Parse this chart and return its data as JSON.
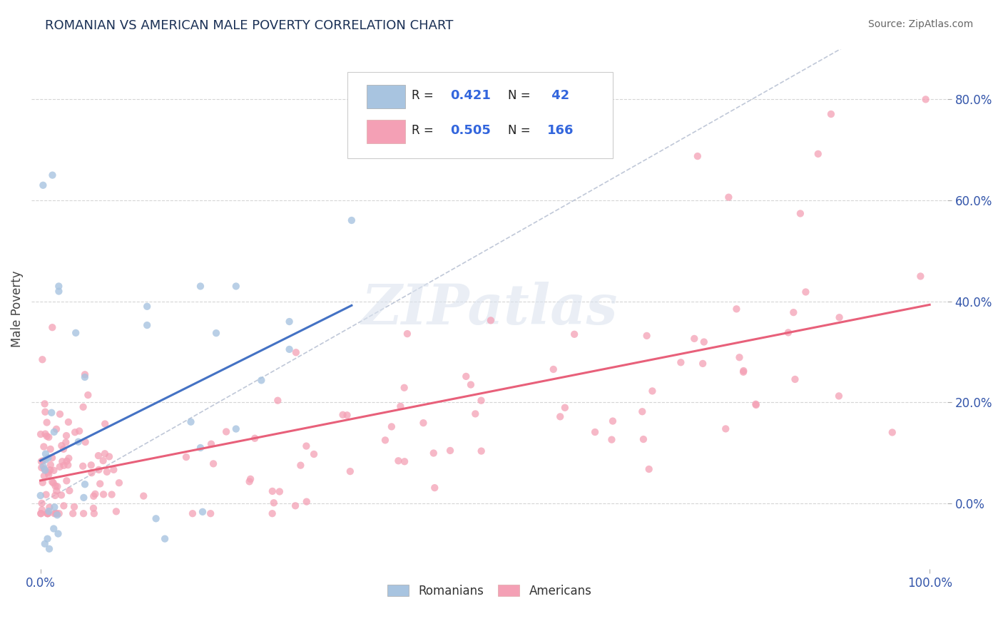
{
  "title": "ROMANIAN VS AMERICAN MALE POVERTY CORRELATION CHART",
  "source": "Source: ZipAtlas.com",
  "ylabel": "Male Poverty",
  "right_yticks": [
    0.0,
    0.2,
    0.4,
    0.6,
    0.8
  ],
  "right_ytick_labels": [
    "0.0%",
    "20.0%",
    "40.0%",
    "60.0%",
    "80.0%"
  ],
  "romanian_R": 0.421,
  "romanian_N": 42,
  "american_R": 0.505,
  "american_N": 166,
  "romanian_color": "#a8c4e0",
  "american_color": "#f4a0b5",
  "romanian_line_color": "#4472c4",
  "american_line_color": "#e8607a",
  "diagonal_color": "#c0c8d8",
  "watermark": "ZIPatlas",
  "background_color": "#ffffff",
  "xlim": [
    -0.01,
    1.02
  ],
  "ylim": [
    -0.13,
    0.9
  ],
  "seed": 12345
}
